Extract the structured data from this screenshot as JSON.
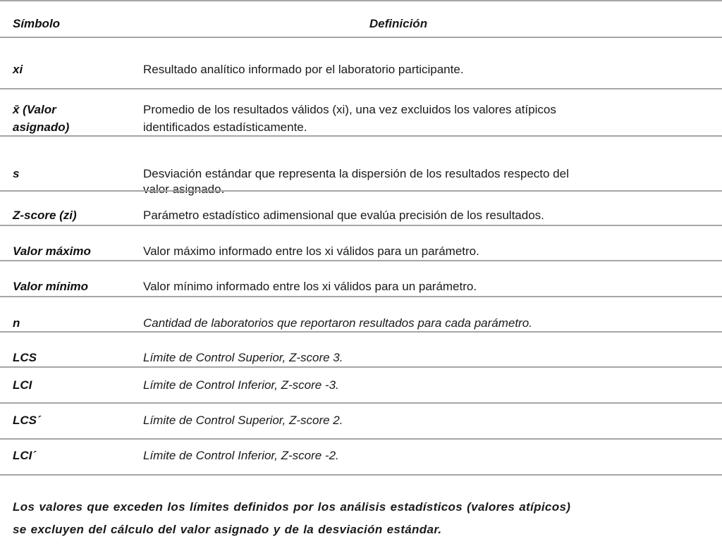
{
  "header": {
    "symbol": "Símbolo",
    "definition": "Definición"
  },
  "rows": [
    {
      "symbol": "xi",
      "definition": [
        "Resultado analítico informado por el laboratorio participante."
      ]
    },
    {
      "symbol": [
        "x̄ (Valor",
        "asignado)"
      ],
      "definition": [
        "Promedio de los resultados válidos (xi), una vez excluidos los valores atípicos",
        "identificados estadísticamente."
      ]
    },
    {
      "symbol": "s",
      "definition": [
        "Desviación estándar que representa la dispersión de los resultados respecto del",
        "valor asignado."
      ]
    },
    {
      "symbol": "Z-score (zi)",
      "definition": [
        "Parámetro estadístico adimensional que evalúa precisión de los resultados."
      ]
    },
    {
      "symbol": "Valor máximo",
      "definition": [
        "Valor máximo informado entre los xi válidos para un parámetro."
      ]
    },
    {
      "symbol": "Valor mínimo",
      "definition": [
        "Valor mínimo informado entre los xi válidos para un parámetro."
      ]
    },
    {
      "symbol": "n",
      "definition": [
        "Cantidad de laboratorios que reportaron resultados para cada parámetro."
      ]
    },
    {
      "symbol": "LCS",
      "definition": [
        "Límite de Control Superior, Z-score 3."
      ]
    },
    {
      "symbol": "LCI",
      "definition": [
        "Límite de Control Inferior, Z-score -3."
      ]
    },
    {
      "symbol": "LCS´",
      "definition": [
        "Límite de Control Superior, Z-score 2."
      ]
    },
    {
      "symbol": "LCI´",
      "definition": [
        "Límite de Control Inferior, Z-score -2."
      ]
    }
  ],
  "footnote": [
    "Los valores que exceden los límites definidos por los análisis estadísticos (valores atípicos)",
    "se excluyen del cálculo del valor asignado y de la desviación estándar."
  ]
}
